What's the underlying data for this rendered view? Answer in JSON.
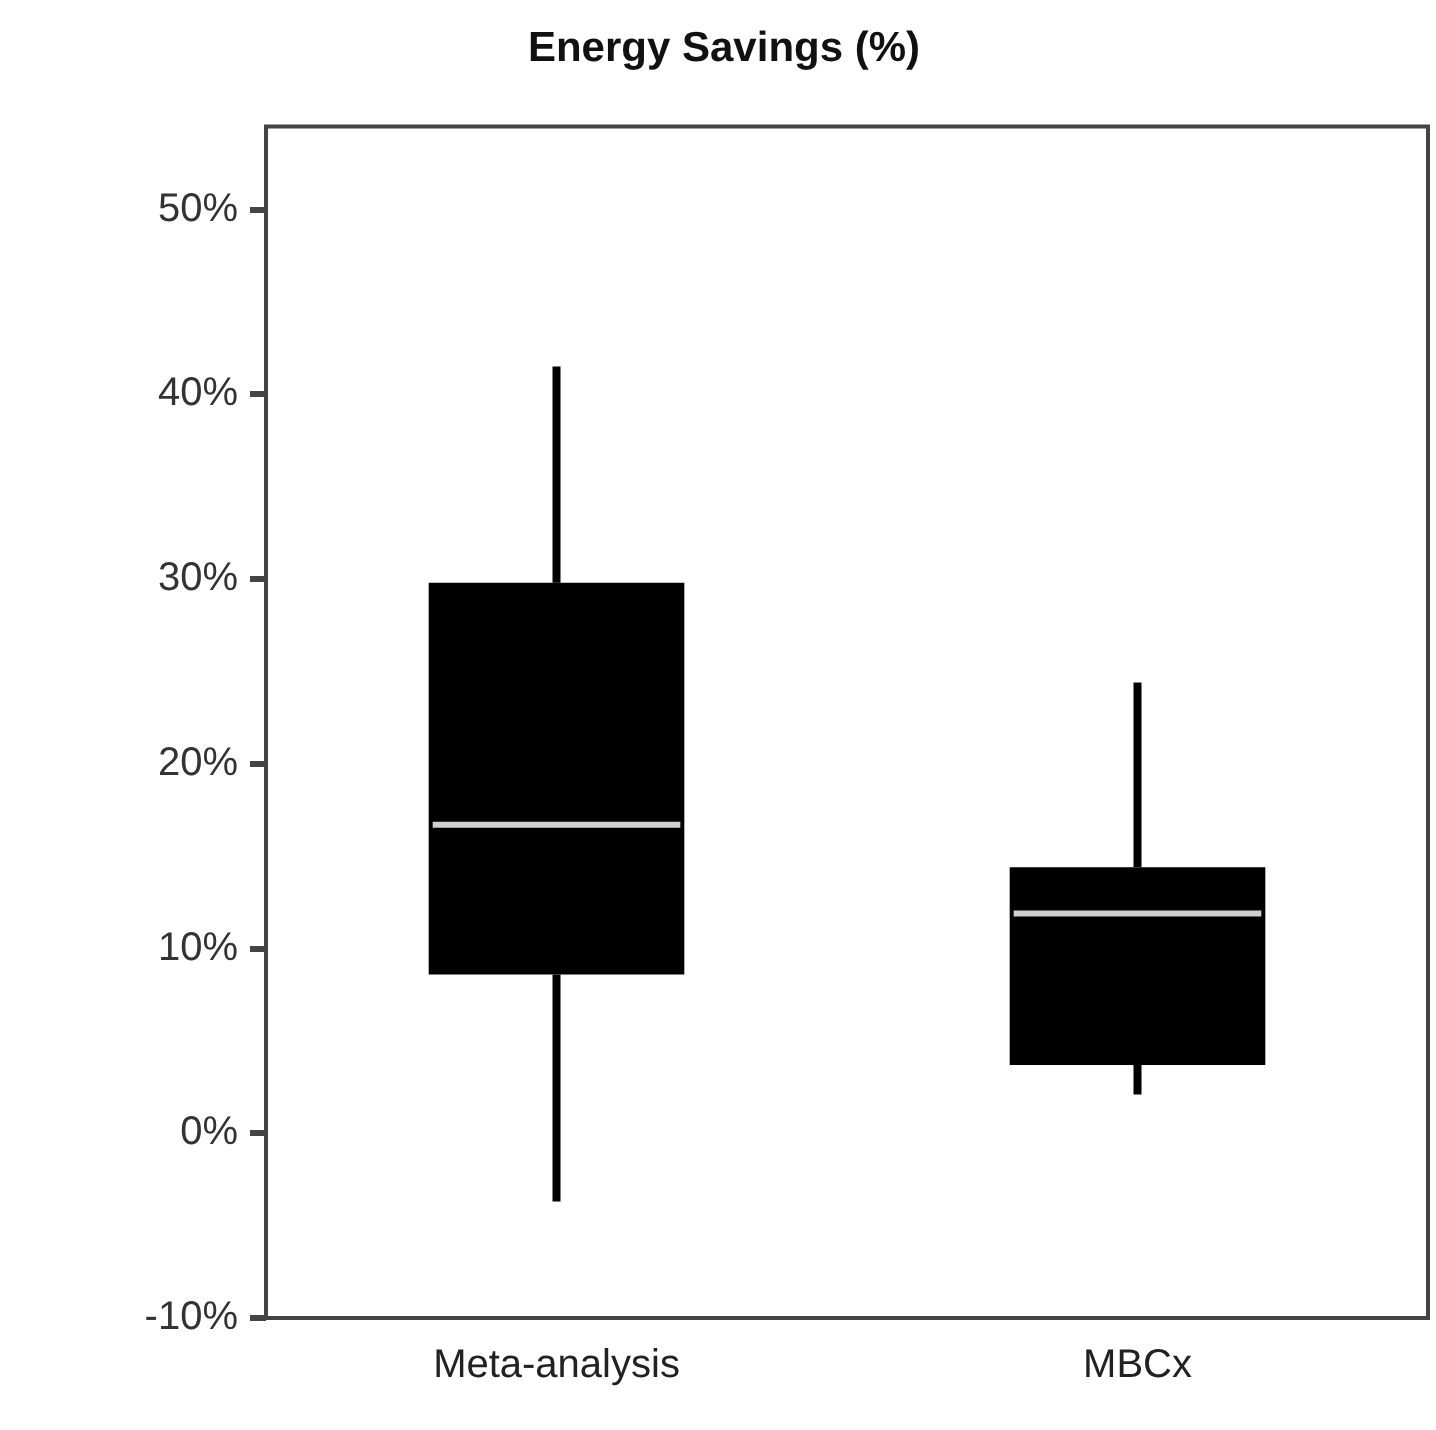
{
  "chart_data": {
    "type": "box",
    "title": "Energy Savings (%)",
    "categories": [
      "Meta-analysis",
      "MBCx"
    ],
    "color": "#000000",
    "boxes": [
      {
        "low": -3.7,
        "q1": 8.6,
        "median": 16.7,
        "q3": 29.8,
        "high": 41.5
      },
      {
        "low": 2.1,
        "q1": 3.7,
        "median": 11.9,
        "q3": 14.4,
        "high": 24.4
      }
    ],
    "ylim": [
      -10,
      54.5
    ],
    "yticks": [
      {
        "value": -10,
        "label": "-10%"
      },
      {
        "value": 0,
        "label": "0%"
      },
      {
        "value": 10,
        "label": "10%"
      },
      {
        "value": 20,
        "label": "20%"
      },
      {
        "value": 30,
        "label": "30%"
      },
      {
        "value": 40,
        "label": "40%"
      },
      {
        "value": 50,
        "label": "50%"
      }
    ],
    "grid": false,
    "legend": false
  }
}
